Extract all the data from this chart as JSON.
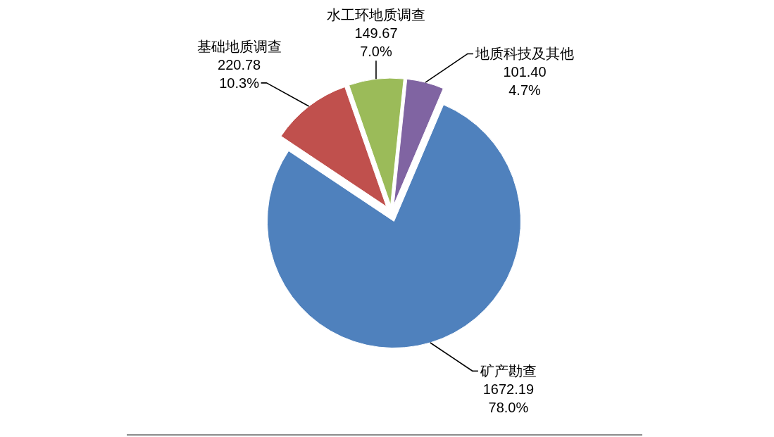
{
  "chart_data": {
    "type": "pie",
    "categories": [
      "矿产勘查",
      "基础地质调查",
      "水工环地质调查",
      "地质科技及其他"
    ],
    "values": [
      1672.19,
      220.78,
      149.67,
      101.4
    ],
    "colors": [
      "#4f81bd",
      "#c0504d",
      "#9bbb59",
      "#8064a2"
    ],
    "value_labels": [
      "1672.19\n78.0%",
      "220.78\n10.3%",
      "149.67\n7.0%",
      "101.40\n4.7%"
    ]
  }
}
